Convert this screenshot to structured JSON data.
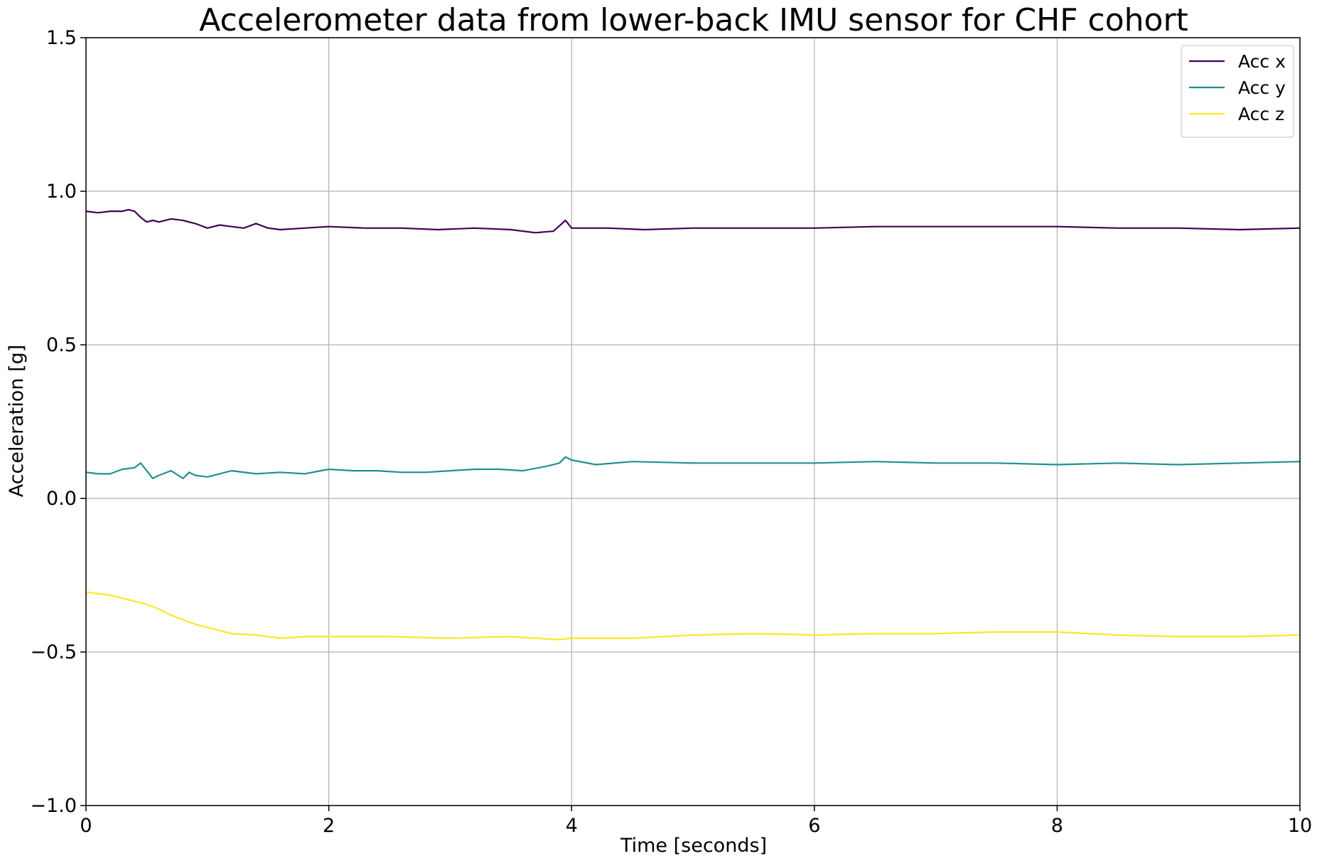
{
  "chart_data": {
    "type": "line",
    "title": "Accelerometer data from lower-back IMU sensor for CHF cohort",
    "xlabel": "Time [seconds]",
    "ylabel": "Acceleration [g]",
    "xlim": [
      0,
      10
    ],
    "ylim": [
      -1.0,
      1.5
    ],
    "xticks": [
      0,
      2,
      4,
      6,
      8,
      10
    ],
    "xtick_labels": [
      "0",
      "2",
      "4",
      "6",
      "8",
      "10"
    ],
    "yticks": [
      -1.0,
      -0.5,
      0.0,
      0.5,
      1.0,
      1.5
    ],
    "ytick_labels": [
      "−1.0",
      "−0.5",
      "0.0",
      "0.5",
      "1.0",
      "1.5"
    ],
    "grid": true,
    "legend_position": "top-right",
    "series": [
      {
        "name": "Acc x",
        "color": "#440154",
        "points": [
          [
            0,
            0.935
          ],
          [
            0.1,
            0.93
          ],
          [
            0.2,
            0.935
          ],
          [
            0.3,
            0.935
          ],
          [
            0.35,
            0.94
          ],
          [
            0.4,
            0.935
          ],
          [
            0.45,
            0.915
          ],
          [
            0.5,
            0.9
          ],
          [
            0.55,
            0.905
          ],
          [
            0.6,
            0.9
          ],
          [
            0.7,
            0.91
          ],
          [
            0.8,
            0.905
          ],
          [
            0.9,
            0.895
          ],
          [
            1.0,
            0.88
          ],
          [
            1.1,
            0.89
          ],
          [
            1.2,
            0.885
          ],
          [
            1.3,
            0.88
          ],
          [
            1.4,
            0.895
          ],
          [
            1.5,
            0.88
          ],
          [
            1.6,
            0.875
          ],
          [
            1.8,
            0.88
          ],
          [
            2.0,
            0.885
          ],
          [
            2.3,
            0.88
          ],
          [
            2.6,
            0.88
          ],
          [
            2.9,
            0.875
          ],
          [
            3.2,
            0.88
          ],
          [
            3.5,
            0.875
          ],
          [
            3.7,
            0.865
          ],
          [
            3.85,
            0.87
          ],
          [
            3.95,
            0.905
          ],
          [
            4.0,
            0.88
          ],
          [
            4.3,
            0.88
          ],
          [
            4.6,
            0.875
          ],
          [
            5.0,
            0.88
          ],
          [
            5.5,
            0.88
          ],
          [
            6.0,
            0.88
          ],
          [
            6.5,
            0.885
          ],
          [
            7.0,
            0.885
          ],
          [
            7.5,
            0.885
          ],
          [
            8.0,
            0.885
          ],
          [
            8.5,
            0.88
          ],
          [
            9.0,
            0.88
          ],
          [
            9.5,
            0.875
          ],
          [
            10.0,
            0.88
          ]
        ]
      },
      {
        "name": "Acc y",
        "color": "#21918c",
        "points": [
          [
            0,
            0.085
          ],
          [
            0.1,
            0.08
          ],
          [
            0.2,
            0.08
          ],
          [
            0.3,
            0.095
          ],
          [
            0.4,
            0.1
          ],
          [
            0.45,
            0.115
          ],
          [
            0.5,
            0.09
          ],
          [
            0.55,
            0.065
          ],
          [
            0.6,
            0.075
          ],
          [
            0.7,
            0.09
          ],
          [
            0.8,
            0.065
          ],
          [
            0.85,
            0.085
          ],
          [
            0.9,
            0.075
          ],
          [
            1.0,
            0.07
          ],
          [
            1.2,
            0.09
          ],
          [
            1.4,
            0.08
          ],
          [
            1.6,
            0.085
          ],
          [
            1.8,
            0.08
          ],
          [
            2.0,
            0.095
          ],
          [
            2.2,
            0.09
          ],
          [
            2.4,
            0.09
          ],
          [
            2.6,
            0.085
          ],
          [
            2.8,
            0.085
          ],
          [
            3.0,
            0.09
          ],
          [
            3.2,
            0.095
          ],
          [
            3.4,
            0.095
          ],
          [
            3.6,
            0.09
          ],
          [
            3.8,
            0.105
          ],
          [
            3.9,
            0.115
          ],
          [
            3.95,
            0.135
          ],
          [
            4.0,
            0.125
          ],
          [
            4.2,
            0.11
          ],
          [
            4.5,
            0.12
          ],
          [
            5.0,
            0.115
          ],
          [
            5.5,
            0.115
          ],
          [
            6.0,
            0.115
          ],
          [
            6.5,
            0.12
          ],
          [
            7.0,
            0.115
          ],
          [
            7.5,
            0.115
          ],
          [
            8.0,
            0.11
          ],
          [
            8.5,
            0.115
          ],
          [
            9.0,
            0.11
          ],
          [
            9.5,
            0.115
          ],
          [
            10.0,
            0.12
          ]
        ]
      },
      {
        "name": "Acc z",
        "color": "#fde725",
        "points": [
          [
            0,
            -0.305
          ],
          [
            0.1,
            -0.31
          ],
          [
            0.2,
            -0.315
          ],
          [
            0.3,
            -0.325
          ],
          [
            0.4,
            -0.335
          ],
          [
            0.5,
            -0.345
          ],
          [
            0.6,
            -0.36
          ],
          [
            0.7,
            -0.38
          ],
          [
            0.8,
            -0.395
          ],
          [
            0.9,
            -0.41
          ],
          [
            1.0,
            -0.42
          ],
          [
            1.1,
            -0.43
          ],
          [
            1.2,
            -0.44
          ],
          [
            1.4,
            -0.445
          ],
          [
            1.6,
            -0.455
          ],
          [
            1.8,
            -0.45
          ],
          [
            2.0,
            -0.45
          ],
          [
            2.5,
            -0.45
          ],
          [
            3.0,
            -0.455
          ],
          [
            3.5,
            -0.45
          ],
          [
            3.9,
            -0.46
          ],
          [
            4.0,
            -0.455
          ],
          [
            4.5,
            -0.455
          ],
          [
            5.0,
            -0.445
          ],
          [
            5.5,
            -0.44
          ],
          [
            6.0,
            -0.445
          ],
          [
            6.5,
            -0.44
          ],
          [
            7.0,
            -0.44
          ],
          [
            7.5,
            -0.435
          ],
          [
            8.0,
            -0.435
          ],
          [
            8.5,
            -0.445
          ],
          [
            9.0,
            -0.45
          ],
          [
            9.5,
            -0.45
          ],
          [
            10.0,
            -0.445
          ]
        ]
      }
    ]
  }
}
